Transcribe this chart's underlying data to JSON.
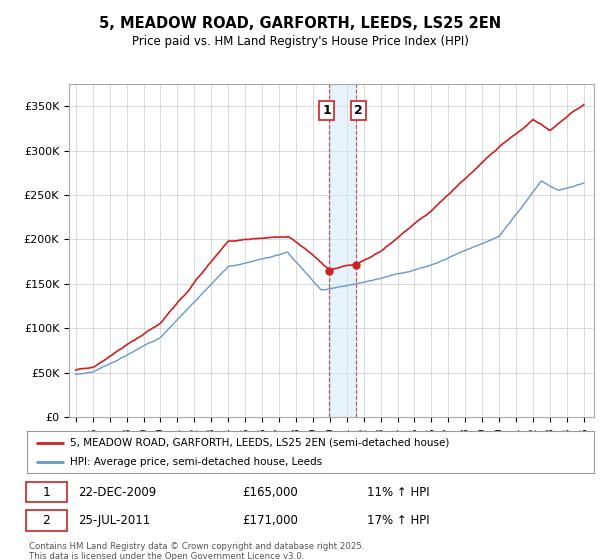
{
  "title": "5, MEADOW ROAD, GARFORTH, LEEDS, LS25 2EN",
  "subtitle": "Price paid vs. HM Land Registry's House Price Index (HPI)",
  "legend_line1": "5, MEADOW ROAD, GARFORTH, LEEDS, LS25 2EN (semi-detached house)",
  "legend_line2": "HPI: Average price, semi-detached house, Leeds",
  "annotation1_label": "1",
  "annotation1_date": "22-DEC-2009",
  "annotation1_price": "£165,000",
  "annotation1_hpi": "11% ↑ HPI",
  "annotation2_label": "2",
  "annotation2_date": "25-JUL-2011",
  "annotation2_price": "£171,000",
  "annotation2_hpi": "17% ↑ HPI",
  "footnote": "Contains HM Land Registry data © Crown copyright and database right 2025.\nThis data is licensed under the Open Government Licence v3.0.",
  "red_color": "#cc2222",
  "blue_color": "#6699cc",
  "shade_color": "#d0e8f8",
  "ylim": [
    0,
    375000
  ],
  "yticks": [
    0,
    50000,
    100000,
    150000,
    200000,
    250000,
    300000,
    350000
  ],
  "ytick_labels": [
    "£0",
    "£50K",
    "£100K",
    "£150K",
    "£200K",
    "£250K",
    "£300K",
    "£350K"
  ],
  "marker1_x": 2009.97,
  "marker1_y": 165000,
  "marker2_x": 2011.56,
  "marker2_y": 171000,
  "xmin": 1995,
  "xmax": 2025
}
